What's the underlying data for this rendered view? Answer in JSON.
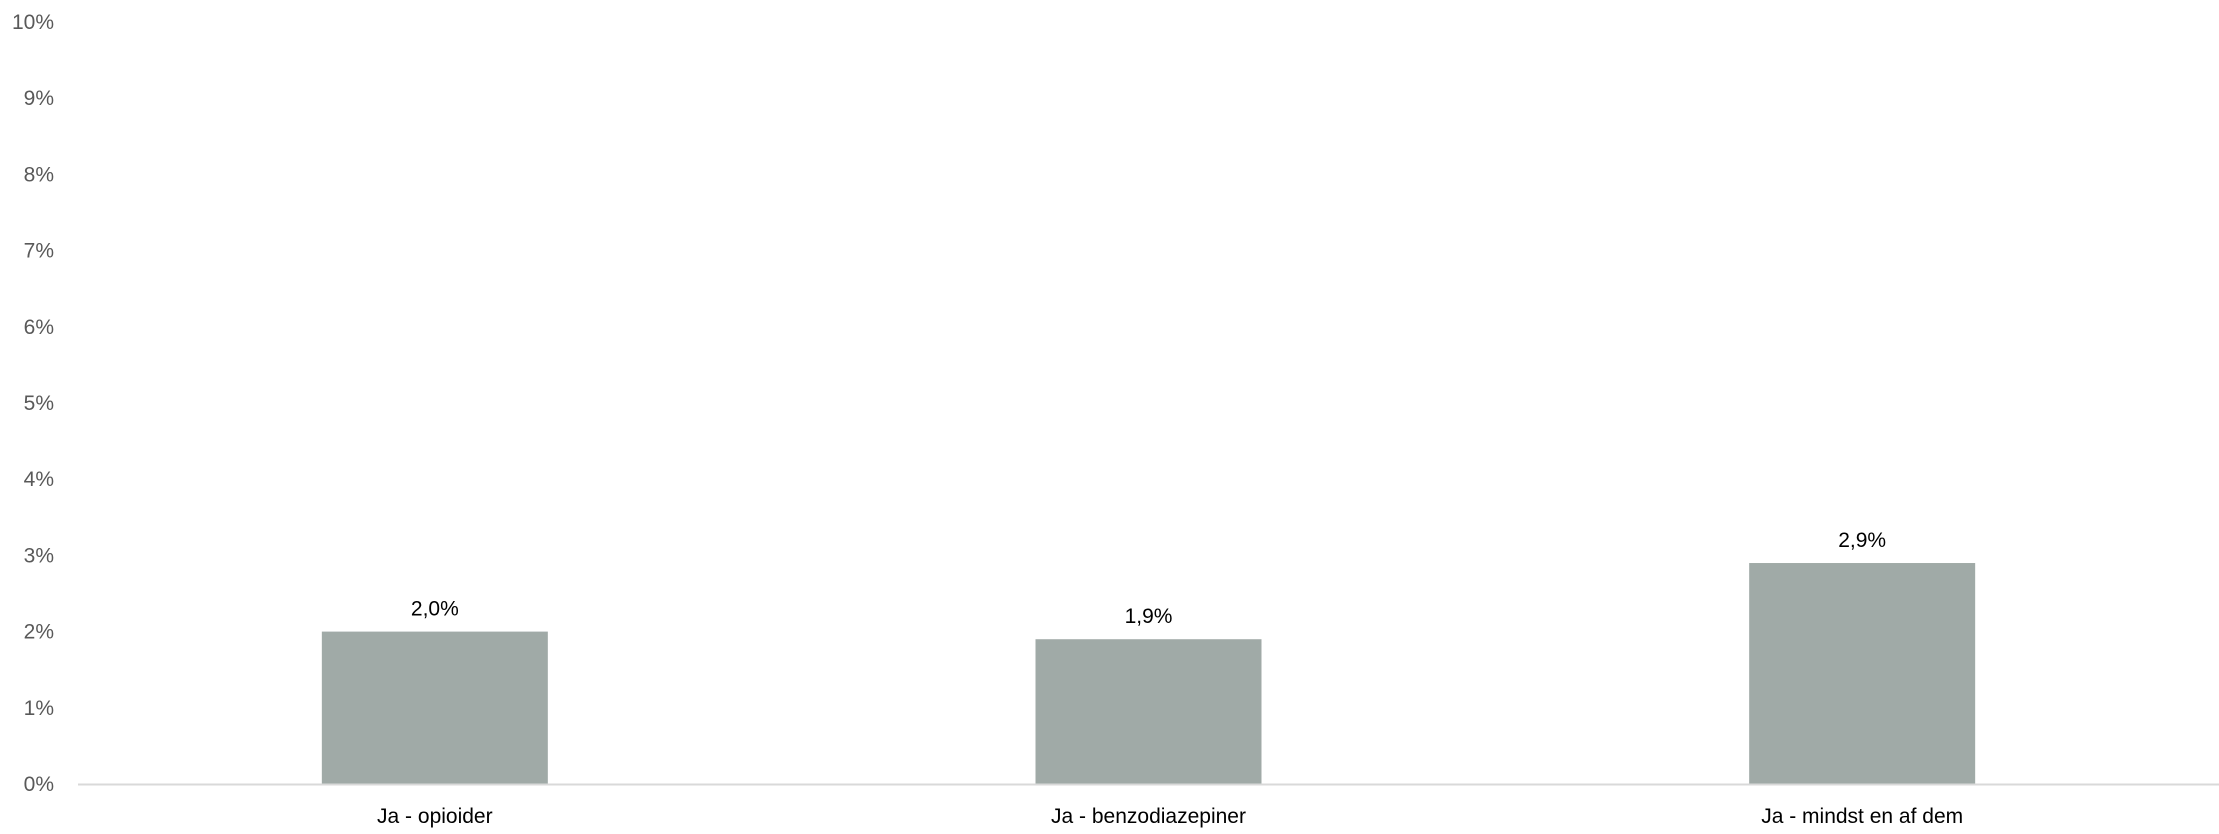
{
  "chart_data": {
    "type": "bar",
    "categories": [
      "Ja - opioider",
      "Ja - benzodiazepiner",
      "Ja - mindst en af dem"
    ],
    "values": [
      2.0,
      1.9,
      2.9
    ],
    "data_labels": [
      "2,0%",
      "1,9%",
      "2,9%"
    ],
    "title": "",
    "xlabel": "",
    "ylabel": "",
    "ylim": [
      0,
      10
    ],
    "y_ticks": [
      0,
      1,
      2,
      3,
      4,
      5,
      6,
      7,
      8,
      9,
      10
    ],
    "y_tick_labels": [
      "0%",
      "1%",
      "2%",
      "3%",
      "4%",
      "5%",
      "6%",
      "7%",
      "8%",
      "9%",
      "10%"
    ],
    "grid": false,
    "legend": "none",
    "colors": {
      "bar": "#a0aaa7",
      "axis": "#d9d9d9",
      "y_tick_text": "#595959",
      "label_text": "#000000"
    }
  }
}
